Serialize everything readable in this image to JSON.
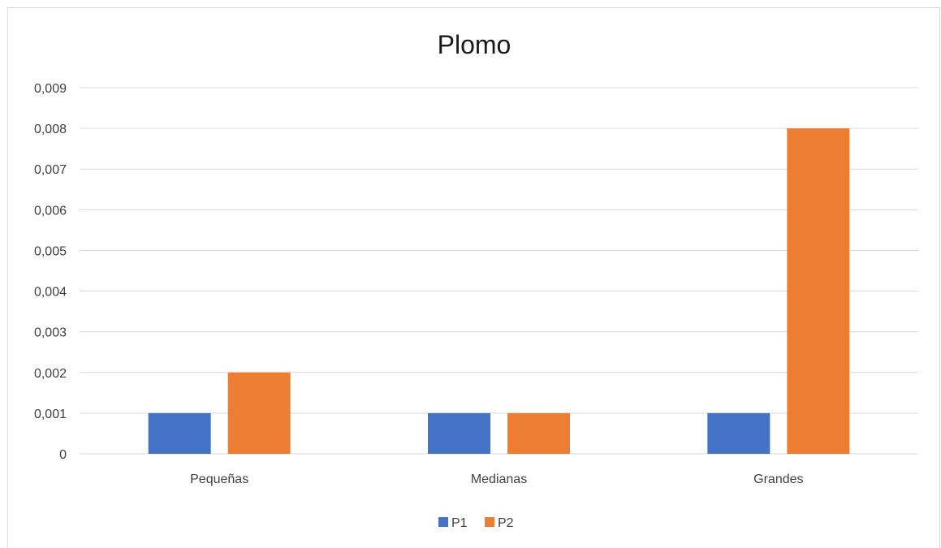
{
  "chart_data": {
    "type": "bar",
    "title": "Plomo",
    "xlabel": "",
    "ylabel": "",
    "categories": [
      "Pequeñas",
      "Medianas",
      "Grandes"
    ],
    "series": [
      {
        "name": "P1",
        "values": [
          0.001,
          0.001,
          0.001
        ],
        "color": "#4472C4"
      },
      {
        "name": "P2",
        "values": [
          0.002,
          0.001,
          0.008
        ],
        "color": "#ED7D31"
      }
    ],
    "ylim": [
      0,
      0.009
    ],
    "yticks": [
      0,
      0.001,
      0.002,
      0.003,
      0.004,
      0.005,
      0.006,
      0.007,
      0.008,
      0.009
    ],
    "ytick_labels": [
      "0",
      "0,001",
      "0,002",
      "0,003",
      "0,004",
      "0,005",
      "0,006",
      "0,007",
      "0,008",
      "0,009"
    ],
    "grid": true,
    "legend_position": "bottom"
  },
  "colors": {
    "gridline": "#d9d9d9",
    "axis": "#d9d9d9"
  }
}
